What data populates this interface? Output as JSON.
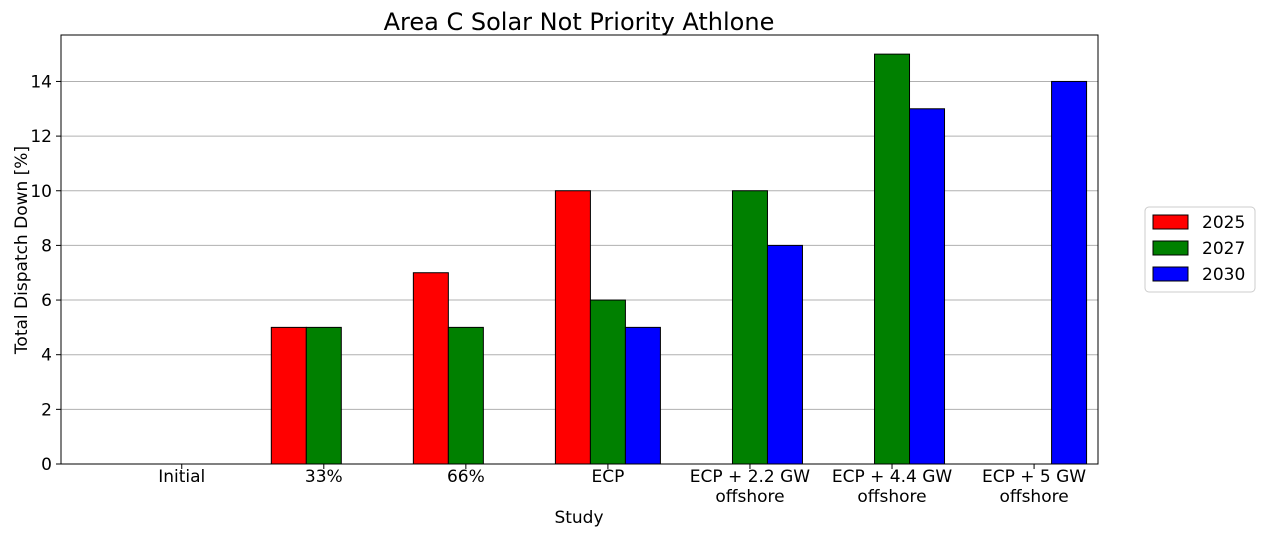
{
  "chart_data": {
    "type": "bar",
    "title": "Area C Solar Not Priority Athlone",
    "xlabel": "Study",
    "ylabel": "Total Dispatch Down [%]",
    "ylim": [
      0,
      15.7
    ],
    "yticks": [
      0,
      2,
      4,
      6,
      8,
      10,
      12,
      14
    ],
    "grid": "horizontal",
    "legend_position": "right",
    "categories": [
      [
        "Initial"
      ],
      [
        "33%"
      ],
      [
        "66%"
      ],
      [
        "ECP"
      ],
      [
        "ECP + 2.2 GW",
        "offshore"
      ],
      [
        "ECP + 4.4 GW",
        "offshore"
      ],
      [
        "ECP + 5 GW",
        "offshore"
      ]
    ],
    "series": [
      {
        "name": "2025",
        "color": "#ff0000",
        "values": [
          0,
          5,
          7,
          10,
          0,
          0,
          0
        ]
      },
      {
        "name": "2027",
        "color": "#008000",
        "values": [
          0,
          5,
          5,
          6,
          10,
          15,
          0
        ]
      },
      {
        "name": "2030",
        "color": "#0000ff",
        "values": [
          0,
          0,
          0,
          5,
          8,
          13,
          14
        ]
      }
    ]
  }
}
